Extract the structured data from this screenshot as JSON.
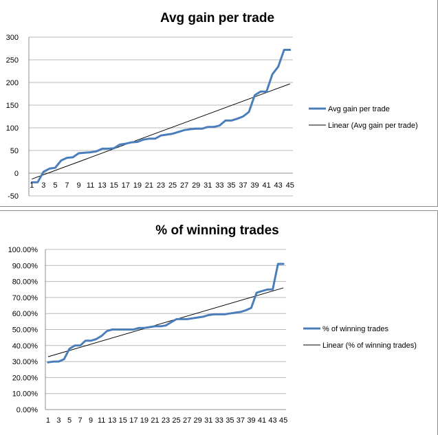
{
  "chart_data": [
    {
      "type": "line",
      "title": "Avg gain per trade",
      "ylim": [
        -50,
        300
      ],
      "yticks": [
        -50,
        0,
        50,
        100,
        150,
        200,
        250,
        300
      ],
      "ytick_labels": [
        "-50",
        "0",
        "50",
        "100",
        "150",
        "200",
        "250",
        "300"
      ],
      "x": [
        1,
        2,
        3,
        4,
        5,
        6,
        7,
        8,
        9,
        10,
        11,
        12,
        13,
        14,
        15,
        16,
        17,
        18,
        19,
        20,
        21,
        22,
        23,
        24,
        25,
        26,
        27,
        28,
        29,
        30,
        31,
        32,
        33,
        34,
        35,
        36,
        37,
        38,
        39,
        40,
        41,
        42,
        43,
        44,
        45
      ],
      "xtick_labels": [
        "1",
        "3",
        "5",
        "7",
        "9",
        "11",
        "13",
        "15",
        "17",
        "19",
        "21",
        "23",
        "25",
        "27",
        "29",
        "31",
        "33",
        "35",
        "37",
        "39",
        "41",
        "43",
        "45"
      ],
      "series": [
        {
          "name": "Avg gain per trade",
          "color": "#4a7ebb",
          "values": [
            -20,
            -20,
            3,
            10,
            12,
            28,
            34,
            35,
            44,
            45,
            46,
            48,
            54,
            54,
            55,
            63,
            65,
            68,
            69,
            74,
            76,
            76,
            83,
            85,
            87,
            91,
            95,
            97,
            98,
            98,
            102,
            102,
            105,
            116,
            116,
            120,
            125,
            135,
            172,
            180,
            180,
            218,
            235,
            272,
            272
          ]
        }
      ],
      "trendline": {
        "name": "Linear (Avg gain per trade)",
        "color": "#000000",
        "start": -13,
        "end": 197
      },
      "grid": true,
      "legend": "right"
    },
    {
      "type": "line",
      "title": "% of winning trades",
      "ylim": [
        0,
        100
      ],
      "yticks": [
        0,
        10,
        20,
        30,
        40,
        50,
        60,
        70,
        80,
        90,
        100
      ],
      "ytick_labels": [
        "0.00%",
        "10.00%",
        "20.00%",
        "30.00%",
        "40.00%",
        "50.00%",
        "60.00%",
        "70.00%",
        "80.00%",
        "90.00%",
        "100.00%"
      ],
      "x": [
        1,
        2,
        3,
        4,
        5,
        6,
        7,
        8,
        9,
        10,
        11,
        12,
        13,
        14,
        15,
        16,
        17,
        18,
        19,
        20,
        21,
        22,
        23,
        24,
        25,
        26,
        27,
        28,
        29,
        30,
        31,
        32,
        33,
        34,
        35,
        36,
        37,
        38,
        39,
        40,
        41,
        42,
        43,
        44,
        45
      ],
      "xtick_labels": [
        "1",
        "3",
        "5",
        "7",
        "9",
        "11",
        "13",
        "15",
        "17",
        "19",
        "21",
        "23",
        "25",
        "27",
        "29",
        "31",
        "33",
        "35",
        "37",
        "39",
        "41",
        "43",
        "45"
      ],
      "series": [
        {
          "name": "% of winning trades",
          "color": "#4a7ebb",
          "values": [
            29.5,
            30,
            30,
            31.5,
            38,
            40,
            40,
            43,
            43,
            44,
            46,
            49,
            50,
            50,
            50,
            50,
            50,
            51,
            51,
            51.5,
            52,
            52,
            52.5,
            54.5,
            56.5,
            56.5,
            56.5,
            57,
            57.5,
            58,
            59,
            59.5,
            59.5,
            59.5,
            60,
            60.5,
            61,
            62,
            63.5,
            73,
            74,
            75,
            75,
            91,
            91
          ]
        }
      ],
      "trendline": {
        "name": "Linear (% of winning trades)",
        "color": "#000000",
        "start": 33,
        "end": 76
      },
      "grid": true,
      "legend": "right"
    }
  ]
}
